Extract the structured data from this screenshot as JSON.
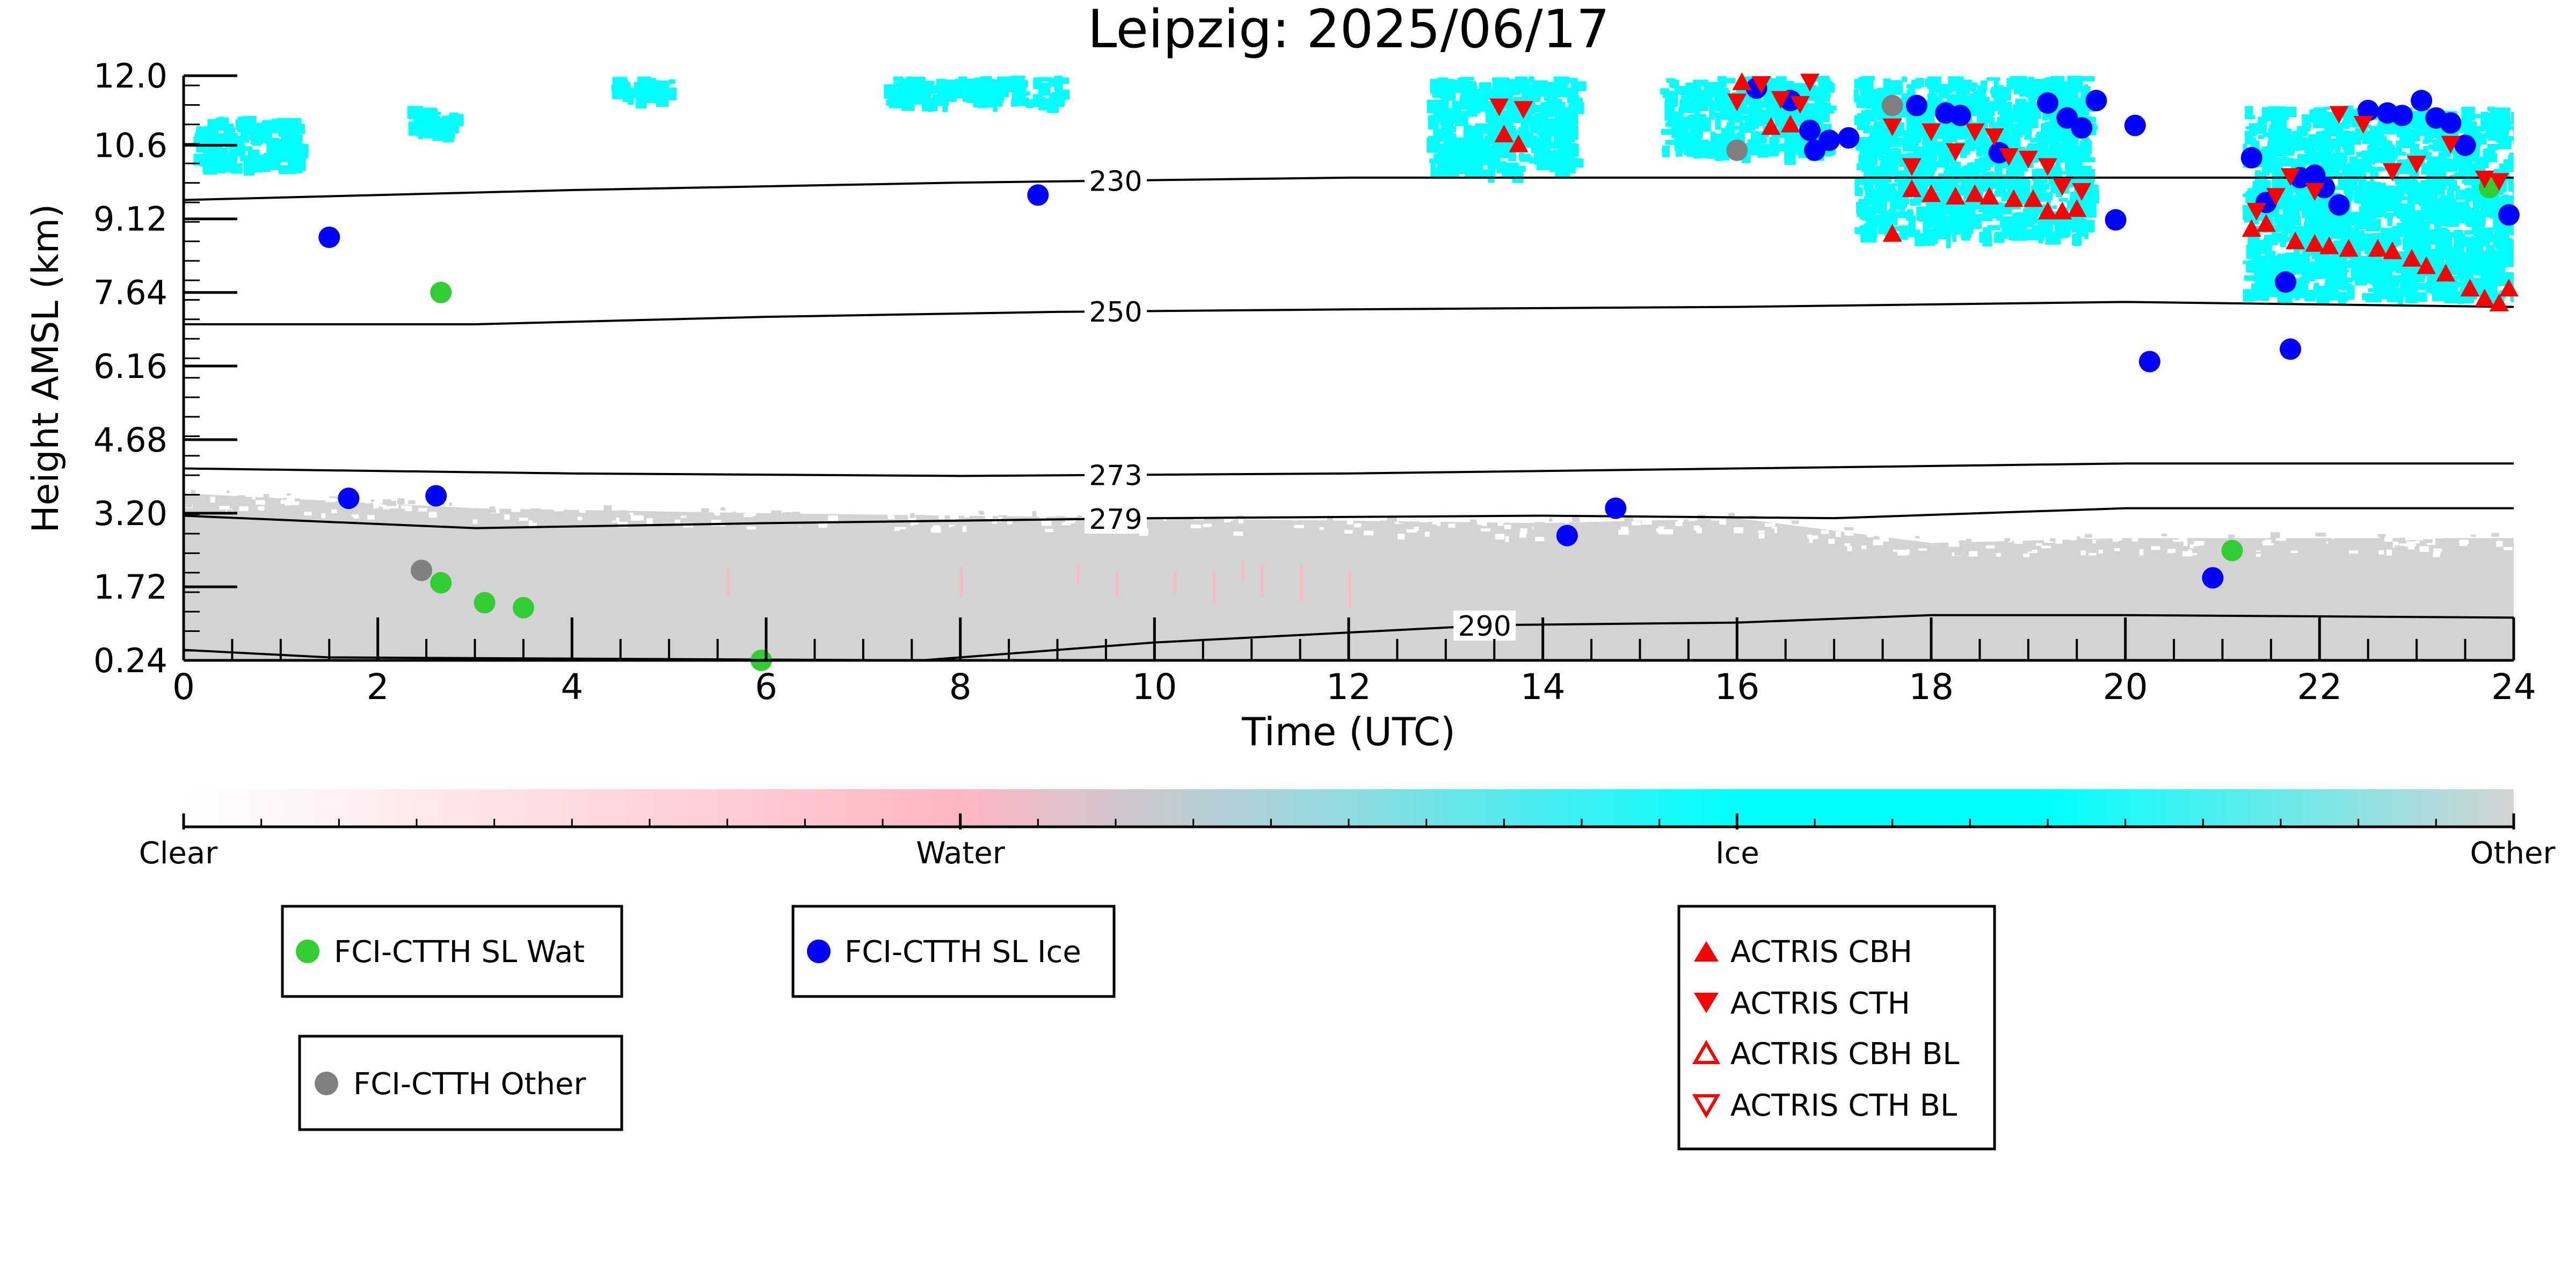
{
  "chart_data": {
    "type": "scatter",
    "title": "Leipzig: 2025/06/17",
    "xlabel": "Time (UTC)",
    "ylabel": "Height AMSL (km)",
    "xlim": [
      0,
      24
    ],
    "ylim": [
      0.24,
      12.0
    ],
    "x_ticks": [
      "0",
      "2",
      "4",
      "6",
      "8",
      "10",
      "12",
      "14",
      "16",
      "18",
      "20",
      "22",
      "24"
    ],
    "y_ticks": [
      "0.24",
      "1.72",
      "3.20",
      "4.68",
      "6.16",
      "7.64",
      "9.12",
      "10.6",
      "12.0"
    ],
    "grid": false,
    "background": {
      "description": "cloud classification field",
      "ice_patches": [
        {
          "x0": 0.1,
          "x1": 1.2,
          "y0": 10.2,
          "y1": 11.2
        },
        {
          "x0": 2.3,
          "x1": 2.8,
          "y0": 10.9,
          "y1": 11.4
        },
        {
          "x0": 4.4,
          "x1": 5.0,
          "y0": 11.6,
          "y1": 12.0
        },
        {
          "x0": 7.2,
          "x1": 9.0,
          "y0": 11.5,
          "y1": 12.0
        },
        {
          "x0": 12.8,
          "x1": 14.3,
          "y0": 10.1,
          "y1": 12.0
        },
        {
          "x0": 15.2,
          "x1": 16.9,
          "y0": 10.5,
          "y1": 12.0
        },
        {
          "x0": 17.2,
          "x1": 19.6,
          "y0": 8.8,
          "y1": 12.0
        },
        {
          "x0": 21.2,
          "x1": 24.0,
          "y0": 7.6,
          "y1": 11.4
        }
      ],
      "low_cloud_top_profile": [
        [
          0,
          3.6
        ],
        [
          3,
          3.3
        ],
        [
          6,
          3.2
        ],
        [
          10,
          3.1
        ],
        [
          14,
          3.0
        ],
        [
          16,
          3.1
        ],
        [
          18,
          2.6
        ],
        [
          20,
          2.7
        ],
        [
          22,
          2.7
        ],
        [
          24,
          2.7
        ]
      ],
      "water_marks_x": [
        5.6,
        8.0,
        9.2,
        9.6,
        10.2,
        10.6,
        10.9,
        11.1,
        11.5,
        12.0
      ]
    },
    "isotherms": [
      {
        "label": "230",
        "label_x": 9.6,
        "points": [
          [
            0,
            9.5
          ],
          [
            4,
            9.7
          ],
          [
            8,
            9.85
          ],
          [
            12,
            9.95
          ],
          [
            16,
            9.95
          ],
          [
            20,
            9.95
          ],
          [
            24,
            9.95
          ]
        ]
      },
      {
        "label": "250",
        "label_x": 9.6,
        "points": [
          [
            0,
            7.0
          ],
          [
            3,
            7.0
          ],
          [
            6,
            7.15
          ],
          [
            9,
            7.25
          ],
          [
            12,
            7.3
          ],
          [
            16,
            7.35
          ],
          [
            20,
            7.45
          ],
          [
            24,
            7.35
          ]
        ]
      },
      {
        "label": "273",
        "label_x": 9.6,
        "points": [
          [
            0,
            4.1
          ],
          [
            4,
            4.0
          ],
          [
            8,
            3.95
          ],
          [
            12,
            4.0
          ],
          [
            16,
            4.1
          ],
          [
            20,
            4.2
          ],
          [
            24,
            4.2
          ]
        ]
      },
      {
        "label": "279",
        "label_x": 9.6,
        "points": [
          [
            0,
            3.15
          ],
          [
            3,
            2.9
          ],
          [
            6,
            3.0
          ],
          [
            10,
            3.1
          ],
          [
            14,
            3.15
          ],
          [
            17,
            3.1
          ],
          [
            20,
            3.3
          ],
          [
            24,
            3.3
          ]
        ]
      },
      {
        "label": "290",
        "label_x": 13.4,
        "points": [
          [
            0,
            0.45
          ],
          [
            1.5,
            0.3
          ],
          [
            7.6,
            0.24
          ],
          [
            10,
            0.6
          ],
          [
            13.5,
            0.95
          ],
          [
            16,
            1.0
          ],
          [
            18,
            1.15
          ],
          [
            20,
            1.15
          ],
          [
            24,
            1.1
          ]
        ]
      }
    ],
    "series": [
      {
        "name": "FCI-CTTH SL Wat",
        "marker": "circle",
        "color": "#32cd32",
        "points": [
          [
            2.65,
            7.64
          ],
          [
            2.65,
            1.8
          ],
          [
            3.1,
            1.4
          ],
          [
            3.5,
            1.3
          ],
          [
            5.95,
            0.24
          ],
          [
            21.1,
            2.45
          ],
          [
            23.75,
            9.75
          ]
        ]
      },
      {
        "name": "FCI-CTTH SL Ice",
        "marker": "circle",
        "color": "#0000ff",
        "points": [
          [
            1.5,
            8.75
          ],
          [
            1.7,
            3.5
          ],
          [
            2.6,
            3.55
          ],
          [
            8.8,
            9.6
          ],
          [
            14.25,
            2.75
          ],
          [
            14.75,
            3.3
          ],
          [
            16.2,
            11.75
          ],
          [
            16.55,
            11.5
          ],
          [
            16.75,
            10.9
          ],
          [
            16.8,
            10.5
          ],
          [
            16.95,
            10.7
          ],
          [
            17.15,
            10.75
          ],
          [
            17.85,
            11.4
          ],
          [
            18.15,
            11.25
          ],
          [
            18.3,
            11.2
          ],
          [
            18.7,
            10.45
          ],
          [
            19.2,
            11.45
          ],
          [
            19.4,
            11.15
          ],
          [
            19.55,
            10.95
          ],
          [
            19.7,
            11.5
          ],
          [
            19.9,
            9.1
          ],
          [
            20.1,
            11.0
          ],
          [
            20.25,
            6.25
          ],
          [
            20.9,
            1.9
          ],
          [
            21.3,
            10.35
          ],
          [
            21.45,
            9.45
          ],
          [
            21.65,
            7.85
          ],
          [
            21.7,
            6.5
          ],
          [
            21.8,
            9.95
          ],
          [
            21.95,
            10.0
          ],
          [
            22.05,
            9.75
          ],
          [
            22.2,
            9.4
          ],
          [
            22.5,
            11.3
          ],
          [
            22.7,
            11.25
          ],
          [
            22.85,
            11.2
          ],
          [
            23.05,
            11.5
          ],
          [
            23.2,
            11.15
          ],
          [
            23.35,
            11.05
          ],
          [
            23.5,
            10.6
          ],
          [
            23.95,
            9.2
          ]
        ]
      },
      {
        "name": "FCI-CTTH Other",
        "marker": "circle",
        "color": "#808080",
        "points": [
          [
            2.45,
            2.05
          ],
          [
            16.0,
            10.5
          ],
          [
            17.6,
            11.4
          ]
        ]
      },
      {
        "name": "ACTRIS CBH",
        "marker": "triangle-up",
        "color": "#ff0000",
        "filled": true,
        "points": [
          [
            13.6,
            10.8
          ],
          [
            13.75,
            10.6
          ],
          [
            16.05,
            11.85
          ],
          [
            16.35,
            10.95
          ],
          [
            16.55,
            11.0
          ],
          [
            17.6,
            8.8
          ],
          [
            17.8,
            9.7
          ],
          [
            18.0,
            9.6
          ],
          [
            18.25,
            9.55
          ],
          [
            18.45,
            9.6
          ],
          [
            18.6,
            9.55
          ],
          [
            18.85,
            9.5
          ],
          [
            19.05,
            9.5
          ],
          [
            19.2,
            9.25
          ],
          [
            19.35,
            9.25
          ],
          [
            19.5,
            9.3
          ],
          [
            21.3,
            8.9
          ],
          [
            21.45,
            9.0
          ],
          [
            21.75,
            8.65
          ],
          [
            21.95,
            8.6
          ],
          [
            22.1,
            8.55
          ],
          [
            22.3,
            8.5
          ],
          [
            22.6,
            8.5
          ],
          [
            22.75,
            8.45
          ],
          [
            22.95,
            8.3
          ],
          [
            23.1,
            8.15
          ],
          [
            23.3,
            8.0
          ],
          [
            23.55,
            7.7
          ],
          [
            23.7,
            7.5
          ],
          [
            23.85,
            7.4
          ],
          [
            23.95,
            7.7
          ]
        ]
      },
      {
        "name": "ACTRIS CTH",
        "marker": "triangle-down",
        "color": "#ff0000",
        "filled": true,
        "points": [
          [
            13.55,
            11.4
          ],
          [
            13.8,
            11.35
          ],
          [
            16.0,
            11.5
          ],
          [
            16.25,
            11.85
          ],
          [
            16.45,
            11.55
          ],
          [
            16.65,
            11.45
          ],
          [
            16.75,
            11.9
          ],
          [
            17.6,
            11.0
          ],
          [
            17.8,
            10.2
          ],
          [
            18.0,
            10.9
          ],
          [
            18.25,
            10.5
          ],
          [
            18.45,
            10.9
          ],
          [
            18.65,
            10.8
          ],
          [
            18.8,
            10.4
          ],
          [
            19.0,
            10.35
          ],
          [
            19.2,
            10.2
          ],
          [
            19.35,
            9.8
          ],
          [
            19.55,
            9.7
          ],
          [
            21.35,
            9.3
          ],
          [
            21.55,
            9.6
          ],
          [
            21.7,
            10.0
          ],
          [
            21.95,
            9.7
          ],
          [
            22.2,
            11.25
          ],
          [
            22.45,
            11.05
          ],
          [
            22.75,
            10.1
          ],
          [
            23.0,
            10.25
          ],
          [
            23.35,
            10.65
          ],
          [
            23.7,
            9.95
          ],
          [
            23.85,
            9.9
          ]
        ]
      },
      {
        "name": "ACTRIS CBH BL",
        "marker": "triangle-up",
        "color": "#ff0000",
        "filled": false,
        "points": []
      },
      {
        "name": "ACTRIS CTH BL",
        "marker": "triangle-down",
        "color": "#ff0000",
        "filled": false,
        "points": []
      }
    ],
    "colorbar": {
      "labels": [
        "Clear",
        "Water",
        "Ice",
        "Other"
      ],
      "colors": [
        "#ffffff",
        "#ffb6c1",
        "#00ffff",
        "#d3d3d3"
      ]
    },
    "legends": [
      {
        "position": "lower-left",
        "entries": [
          "FCI-CTTH SL Wat"
        ]
      },
      {
        "position": "lower-center-left",
        "entries": [
          "FCI-CTTH SL Ice"
        ]
      },
      {
        "position": "lower-left",
        "entries": [
          "FCI-CTTH Other"
        ]
      },
      {
        "position": "lower-right",
        "entries": [
          "ACTRIS CBH",
          "ACTRIS CTH",
          "ACTRIS CBH BL",
          "ACTRIS CTH BL"
        ]
      }
    ]
  },
  "colors": {
    "ice": "#00ffff",
    "water": "#ffb6c1",
    "other": "#d3d3d3",
    "wat_marker": "#32cd32",
    "ice_marker": "#0000ff",
    "other_marker": "#808080",
    "actris": "#ff0000"
  }
}
